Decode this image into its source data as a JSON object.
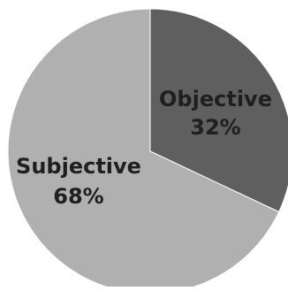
{
  "chart_data": {
    "type": "pie",
    "title": "",
    "slices": [
      {
        "label": "Objective",
        "value": 32,
        "display": "32%",
        "color": "#5f5f5f"
      },
      {
        "label": "Subjective",
        "value": 68,
        "display": "68%",
        "color": "#b0b0b0"
      }
    ],
    "start": "top",
    "direction": "clockwise",
    "label_color": "#1f1f1f",
    "border_color": "#ffffff",
    "data_labels": "inside"
  }
}
